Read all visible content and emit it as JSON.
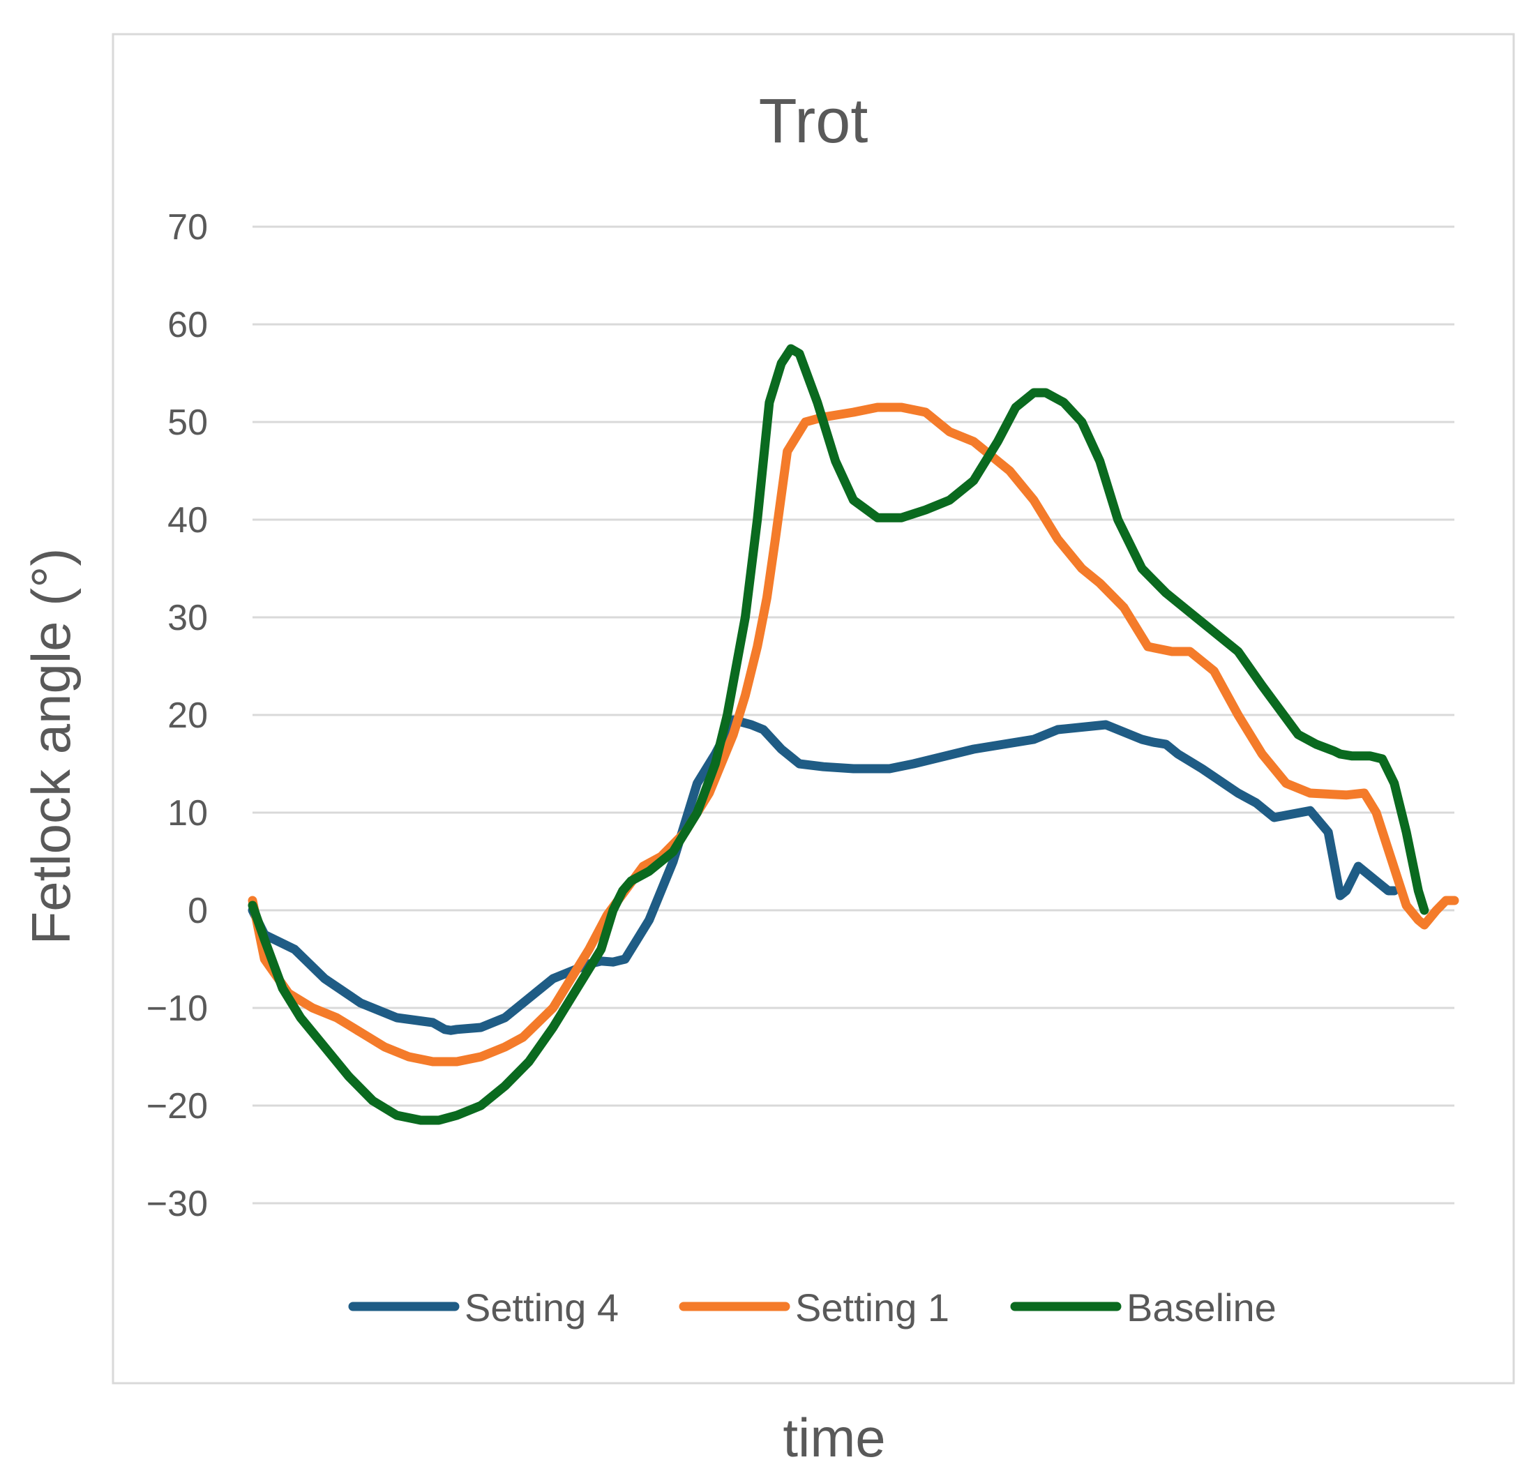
{
  "chart_data": {
    "type": "line",
    "title": "Trot",
    "xlabel": "time",
    "ylabel": "Fetlock angle (°)",
    "ylim": [
      -30,
      70
    ],
    "yticks": [
      70,
      60,
      50,
      40,
      30,
      20,
      10,
      0,
      -10,
      -20,
      -30
    ],
    "ytick_labels": [
      "70",
      "60",
      "50",
      "40",
      "30",
      "20",
      "10",
      "0",
      "−10",
      "−20",
      "−30"
    ],
    "xlim": [
      0,
      100
    ],
    "grid": true,
    "legend_position": "bottom",
    "series": [
      {
        "name": "Setting 4",
        "color": "#1f5c85",
        "x": [
          0,
          1,
          3.5,
          6,
          9,
          12,
          15,
          16,
          16.5,
          17,
          19,
          21,
          23,
          25,
          27,
          28,
          29,
          30,
          31,
          32,
          33,
          35,
          37,
          38.5,
          40,
          41.5,
          42.5,
          44,
          45.5,
          47.5,
          50,
          52,
          53,
          55,
          60,
          65,
          67,
          71,
          74,
          75,
          76,
          77,
          79,
          82,
          83.5,
          85,
          88,
          89.5,
          90.5,
          91,
          92,
          93,
          94,
          94.5,
          95
        ],
        "values": [
          0,
          -2.5,
          -4,
          -7,
          -9.5,
          -11,
          -11.5,
          -12.2,
          -12.3,
          -12.2,
          -12,
          -11,
          -9,
          -7,
          -6,
          -5.5,
          -5.2,
          -5.3,
          -5,
          -3,
          -1,
          5,
          13,
          16,
          19.5,
          19,
          18.5,
          16.5,
          15,
          14.7,
          14.5,
          14.5,
          14.5,
          15,
          16.5,
          17.5,
          18.5,
          19,
          17.5,
          17.2,
          17,
          16,
          14.5,
          12,
          11,
          9.5,
          10.2,
          8,
          1.5,
          2,
          4.5,
          3.5,
          2.5,
          2,
          2
        ]
      },
      {
        "name": "Setting 1",
        "color": "#f47b2a",
        "x": [
          0,
          1,
          3,
          5,
          7,
          9,
          11,
          13,
          15,
          17,
          19,
          21,
          22.5,
          25,
          27,
          28,
          29.5,
          31,
          32.5,
          34,
          36,
          38,
          40,
          41,
          42,
          42.8,
          43.5,
          44.5,
          46,
          47.5,
          50,
          52,
          54,
          56,
          58,
          60,
          63,
          65,
          67,
          69,
          70.5,
          72.5,
          73.5,
          74.5,
          76.5,
          78,
          80,
          82,
          84,
          86,
          88,
          91,
          92.5,
          93.5,
          96,
          97,
          97.5,
          98.5,
          99.3,
          100
        ],
        "values": [
          1,
          -5,
          -8.5,
          -10,
          -11,
          -12.5,
          -14,
          -15,
          -15.5,
          -15.5,
          -15,
          -14,
          -13,
          -10,
          -6,
          -4,
          -0.5,
          2,
          4.5,
          5.5,
          8,
          12,
          18,
          22,
          27,
          32,
          38,
          47,
          50,
          50.5,
          51,
          51.5,
          51.5,
          51,
          49,
          48,
          45,
          42,
          38,
          35,
          33.5,
          31,
          29,
          27,
          26.5,
          26.5,
          24.5,
          20,
          16,
          13,
          12,
          11.8,
          12,
          10,
          0.5,
          -1,
          -1.5,
          0,
          1,
          1
        ]
      },
      {
        "name": "Baseline",
        "color": "#0a6a1f",
        "x": [
          0,
          1,
          2.5,
          4,
          6,
          8,
          10,
          12,
          14,
          15.5,
          17,
          19,
          21,
          23,
          25,
          27,
          29,
          30,
          30.8,
          31.5,
          33,
          35,
          37,
          38.5,
          39.5,
          41,
          42,
          43,
          44,
          44.8,
          45.5,
          47,
          48.5,
          50,
          52,
          54,
          56,
          58,
          60,
          62,
          63.5,
          65,
          66,
          67.5,
          69,
          70.5,
          72,
          74,
          76,
          78,
          80,
          82,
          84,
          87,
          88.5,
          90,
          90.5,
          91.5,
          93,
          94,
          95,
          96,
          97,
          97.5
        ],
        "values": [
          0.5,
          -3,
          -8,
          -11,
          -14,
          -17,
          -19.5,
          -21,
          -21.5,
          -21.5,
          -21,
          -20,
          -18,
          -15.5,
          -12,
          -8,
          -4,
          0,
          2,
          3,
          4,
          6,
          10,
          15,
          20,
          30,
          40,
          52,
          56,
          57.5,
          57,
          52,
          46,
          42,
          40.2,
          40.2,
          41,
          42,
          44,
          48,
          51.5,
          53,
          53,
          52,
          50,
          46,
          40,
          35,
          32.5,
          30.5,
          28.5,
          26.5,
          23,
          18,
          17,
          16.3,
          16,
          15.8,
          15.8,
          15.5,
          13,
          8,
          2,
          0
        ]
      }
    ]
  }
}
